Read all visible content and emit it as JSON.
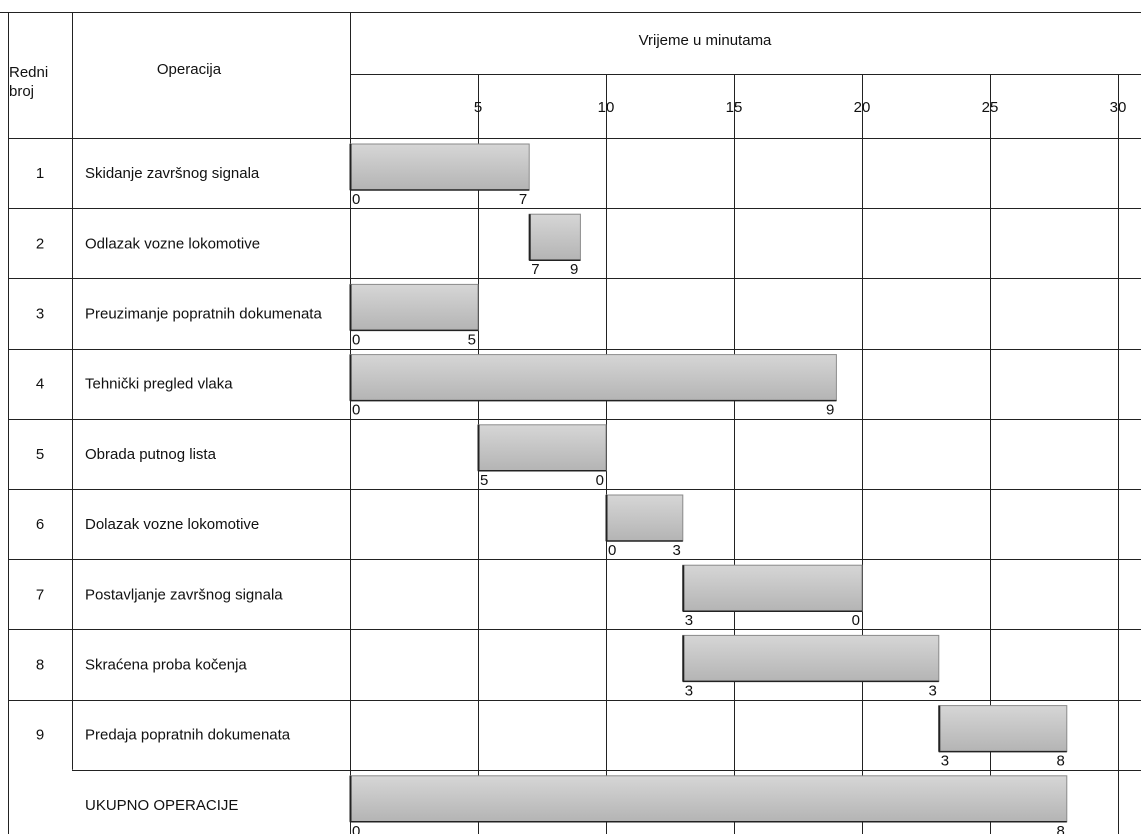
{
  "header": {
    "col_number": "Redni broj",
    "col_operation": "Operacija",
    "col_time": "Vrijeme u minutama"
  },
  "axis_ticks": [
    "5",
    "10",
    "15",
    "20",
    "25",
    "30"
  ],
  "bar_fill_color": "#c3c3c3",
  "chart_data": {
    "type": "gantt",
    "title": "",
    "xlabel": "Vrijeme u minutama",
    "xlim": [
      0,
      30
    ],
    "ticks": [
      5,
      10,
      15,
      20,
      25,
      30
    ],
    "grid": true,
    "tasks": [
      {
        "no": "1",
        "name": "Skidanje završnog signala",
        "start": 0,
        "end": 7,
        "start_label": "0",
        "end_label": "7"
      },
      {
        "no": "2",
        "name": "Odlazak vozne lokomotive",
        "start": 7,
        "end": 9,
        "start_label": "7",
        "end_label": "9"
      },
      {
        "no": "3",
        "name": "Preuzimanje popratnih dokumenata",
        "start": 0,
        "end": 5,
        "start_label": "0",
        "end_label": "5"
      },
      {
        "no": "4",
        "name": "Tehnički pregled vlaka",
        "start": 0,
        "end": 19,
        "start_label": "0",
        "end_label": "9"
      },
      {
        "no": "5",
        "name": "Obrada putnog lista",
        "start": 5,
        "end": 10,
        "start_label": "5",
        "end_label": "0"
      },
      {
        "no": "6",
        "name": "Dolazak vozne lokomotive",
        "start": 10,
        "end": 13,
        "start_label": "0",
        "end_label": "3"
      },
      {
        "no": "7",
        "name": "Postavljanje završnog signala",
        "start": 13,
        "end": 20,
        "start_label": "3",
        "end_label": "0"
      },
      {
        "no": "8",
        "name": "Skraćena proba kočenja",
        "start": 13,
        "end": 23,
        "start_label": "3",
        "end_label": "3"
      },
      {
        "no": "9",
        "name": "Predaja popratnih dokumenata",
        "start": 23,
        "end": 28,
        "start_label": "3",
        "end_label": "8"
      },
      {
        "no": "",
        "name": "UKUPNO OPERACIJE",
        "start": 0,
        "end": 28,
        "start_label": "0",
        "end_label": "8"
      }
    ]
  }
}
